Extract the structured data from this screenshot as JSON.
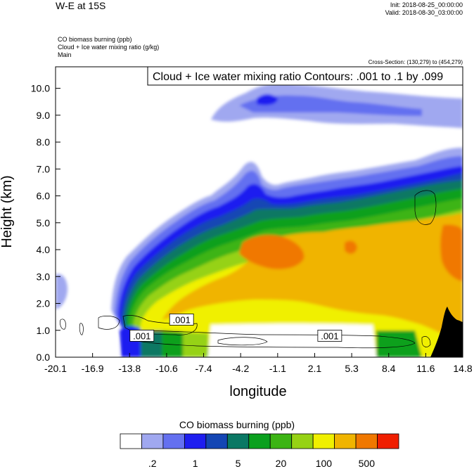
{
  "header": {
    "title": "W-E at 15S",
    "init": "Init: 2018-08-25_00:00:00",
    "valid": "Valid: 2018-08-30_03:00:00",
    "variables": [
      "CO biomass burning   (ppb)",
      "Cloud + Ice water mixing ratio   (g/kg)",
      "Main"
    ],
    "cross_section": "Cross-Section: (130,279) to (454,279)"
  },
  "chart_data": {
    "type": "heatmap",
    "title": "Cloud + Ice water mixing ratio Contours: .001 to .1 by .099",
    "xlabel": "longitude",
    "ylabel": "Height (km)",
    "xlim": [
      -20.1,
      14.8
    ],
    "ylim": [
      0.0,
      10.8
    ],
    "x_ticks": [
      "-20.1",
      "-16.9",
      "-13.8",
      "-10.6",
      "-7.4",
      "-4.2",
      "-1.1",
      "2.1",
      "5.3",
      "8.4",
      "11.6",
      "14.8"
    ],
    "y_ticks": [
      "0.0",
      "1.0",
      "2.0",
      "3.0",
      "4.0",
      "5.0",
      "6.0",
      "7.0",
      "8.0",
      "9.0",
      "10.0"
    ],
    "contour_labels": [
      {
        "text": ".001",
        "lon": -9.3,
        "height": 1.4
      },
      {
        "text": ".001",
        "lon": -12.7,
        "height": 0.8
      },
      {
        "text": ".001",
        "lon": 3.4,
        "height": 0.8
      }
    ],
    "colorbar": {
      "title": "CO biomass burning  (ppb)",
      "colors": [
        "#ffffff",
        "#a0a8f0",
        "#6470f0",
        "#1e1ef0",
        "#1446b4",
        "#0a7864",
        "#0aa01e",
        "#3cb414",
        "#96d214",
        "#f0f000",
        "#f0b400",
        "#f07800",
        "#f01e00"
      ],
      "labels": [
        ".2",
        "1",
        "5",
        "20",
        "100",
        "500"
      ]
    },
    "legend": "bottom",
    "grid": false
  }
}
